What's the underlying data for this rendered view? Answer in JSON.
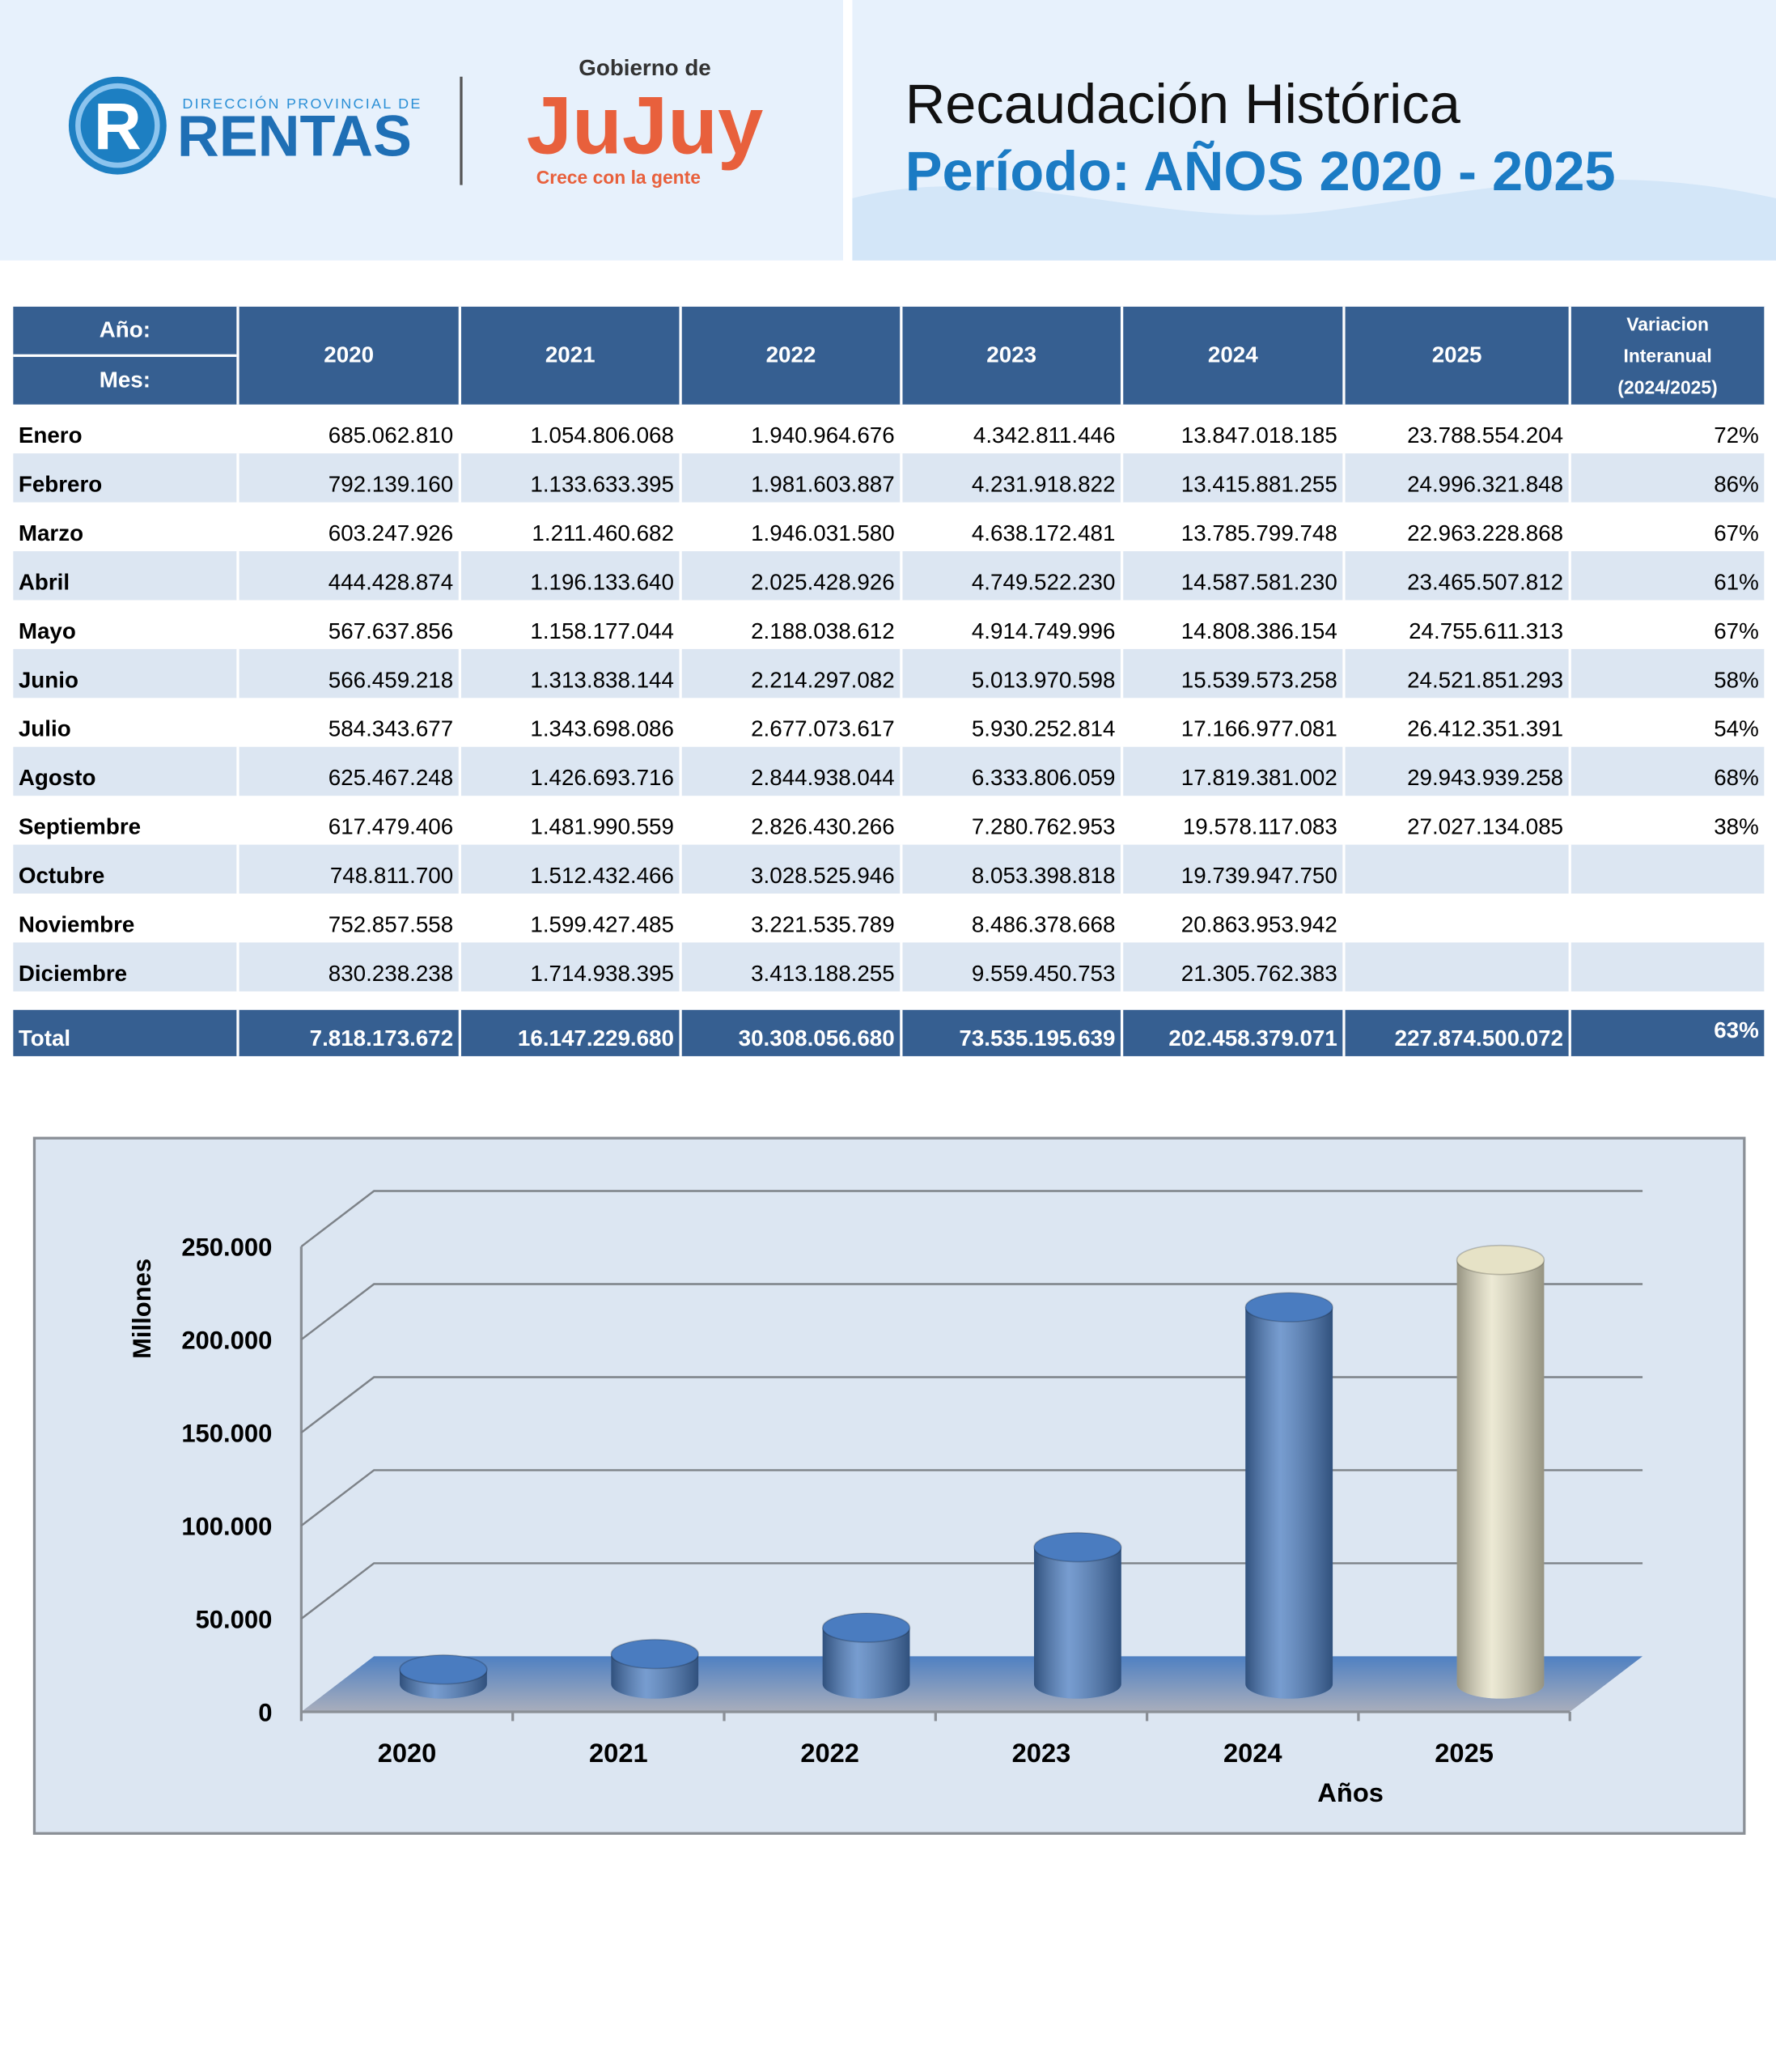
{
  "header": {
    "logo_rentas": {
      "mark": "R",
      "subtitle": "DIRECCIÓN PROVINCIAL DE",
      "name": "RENTAS"
    },
    "logo_jujuy": {
      "top": "Gobierno de",
      "name": "JuJuy",
      "tagline": "Crece con la gente"
    },
    "title": "Recaudación Histórica",
    "subtitle": "Período: AÑOS 2020 - 2025"
  },
  "table": {
    "header": {
      "year_label": "Año:",
      "month_label": "Mes:",
      "columns": [
        "2020",
        "2021",
        "2022",
        "2023",
        "2024",
        "2025"
      ],
      "variation": [
        "Variacion",
        "Interanual",
        "(2024/2025)"
      ]
    },
    "rows": [
      [
        "Enero",
        "685.062.810",
        "1.054.806.068",
        "1.940.964.676",
        "4.342.811.446",
        "13.847.018.185",
        "23.788.554.204",
        "72%"
      ],
      [
        "Febrero",
        "792.139.160",
        "1.133.633.395",
        "1.981.603.887",
        "4.231.918.822",
        "13.415.881.255",
        "24.996.321.848",
        "86%"
      ],
      [
        "Marzo",
        "603.247.926",
        "1.211.460.682",
        "1.946.031.580",
        "4.638.172.481",
        "13.785.799.748",
        "22.963.228.868",
        "67%"
      ],
      [
        "Abril",
        "444.428.874",
        "1.196.133.640",
        "2.025.428.926",
        "4.749.522.230",
        "14.587.581.230",
        "23.465.507.812",
        "61%"
      ],
      [
        "Mayo",
        "567.637.856",
        "1.158.177.044",
        "2.188.038.612",
        "4.914.749.996",
        "14.808.386.154",
        "24.755.611.313",
        "67%"
      ],
      [
        "Junio",
        "566.459.218",
        "1.313.838.144",
        "2.214.297.082",
        "5.013.970.598",
        "15.539.573.258",
        "24.521.851.293",
        "58%"
      ],
      [
        "Julio",
        "584.343.677",
        "1.343.698.086",
        "2.677.073.617",
        "5.930.252.814",
        "17.166.977.081",
        "26.412.351.391",
        "54%"
      ],
      [
        "Agosto",
        "625.467.248",
        "1.426.693.716",
        "2.844.938.044",
        "6.333.806.059",
        "17.819.381.002",
        "29.943.939.258",
        "68%"
      ],
      [
        "Septiembre",
        "617.479.406",
        "1.481.990.559",
        "2.826.430.266",
        "7.280.762.953",
        "19.578.117.083",
        "27.027.134.085",
        "38%"
      ],
      [
        "Octubre",
        "748.811.700",
        "1.512.432.466",
        "3.028.525.946",
        "8.053.398.818",
        "19.739.947.750"
      ],
      [
        "Noviembre",
        "752.857.558",
        "1.599.427.485",
        "3.221.535.789",
        "8.486.378.668",
        "20.863.953.942"
      ],
      [
        "Diciembre",
        "830.238.238",
        "1.714.938.395",
        "3.413.188.255",
        "9.559.450.753",
        "21.305.762.383"
      ]
    ],
    "total": [
      "Total",
      "7.818.173.672",
      "16.147.229.680",
      "30.308.056.680",
      "73.535.195.639",
      "202.458.379.071",
      "227.874.500.072",
      "63%"
    ]
  },
  "chart_data": {
    "type": "bar3d",
    "y_label": "Millones",
    "x_label": "Años",
    "categories": [
      "2020",
      "2021",
      "2022",
      "2023",
      "2024",
      "2025"
    ],
    "values": [
      7818,
      16147,
      30308,
      73535,
      202458,
      227875
    ],
    "colors": [
      "#4a7cc0",
      "#4a7cc0",
      "#4a7cc0",
      "#4a7cc0",
      "#4a7cc0",
      "#e6e2c6"
    ],
    "ylim": [
      0,
      250000
    ],
    "yticks": [
      0,
      {
        "value": 50000,
        "label": "50.000"
      },
      {
        "value": 100000,
        "label": "100.000"
      },
      {
        "value": 150000,
        "label": "150.000"
      },
      {
        "value": 200000,
        "label": "200.000"
      },
      {
        "value": 250000,
        "label": "250.000"
      }
    ],
    "grid": true
  }
}
